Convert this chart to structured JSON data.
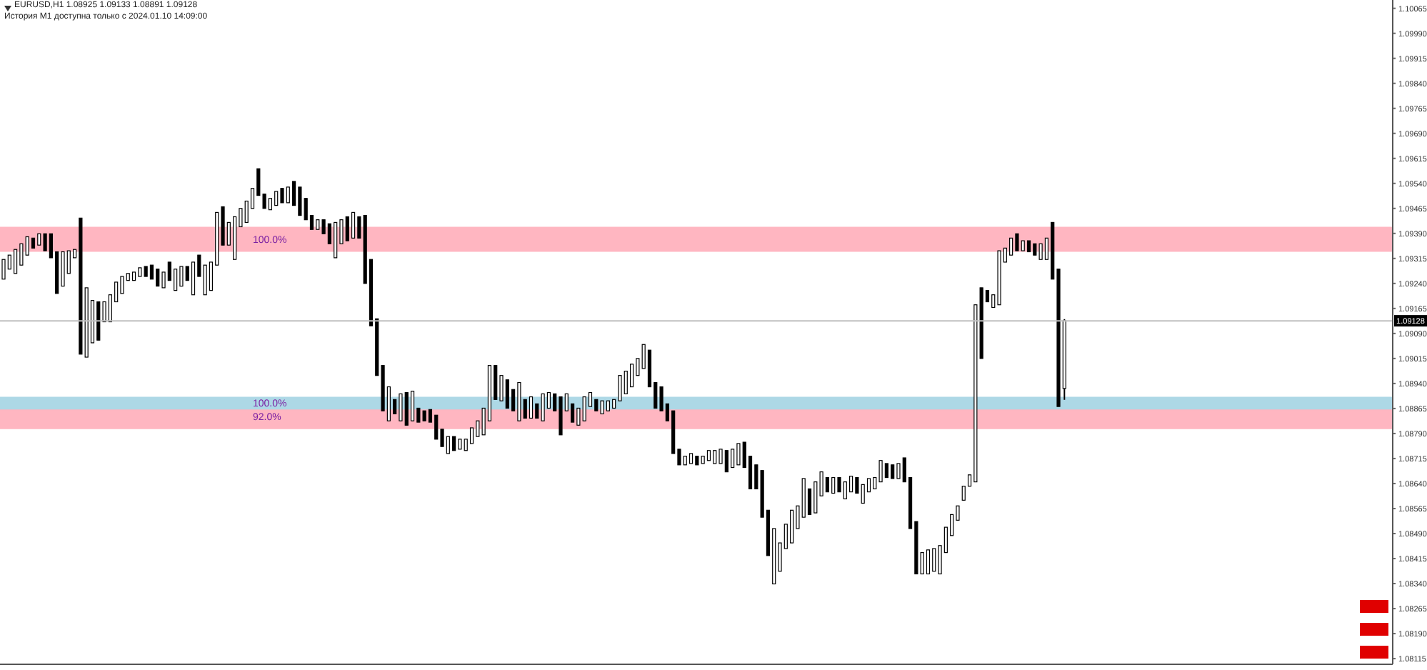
{
  "chart_data": {
    "type": "candlestick",
    "title": "EURUSD,H1  1.08925 1.09133 1.08891 1.09128",
    "subtitle": "История M1 доступна только с 2024.01.10 14:09:00",
    "categories": [
      null,
      null,
      null,
      null,
      null,
      null,
      null,
      null,
      null,
      null,
      null,
      null,
      null,
      null,
      null,
      null,
      null,
      null,
      null,
      null,
      null,
      null,
      null,
      null,
      null,
      null,
      null,
      null,
      null,
      null,
      null,
      null,
      null,
      null,
      null,
      null,
      null,
      null,
      null,
      null,
      null,
      null,
      null,
      null,
      null,
      null,
      null,
      null,
      null,
      null,
      null,
      null,
      null,
      null,
      null,
      null,
      null,
      null,
      null,
      null,
      null,
      null,
      null,
      null,
      null,
      null,
      null,
      null,
      null,
      null,
      null,
      null,
      null,
      null,
      null,
      null,
      null,
      null,
      null,
      null,
      null,
      null,
      null,
      null,
      null,
      null,
      null,
      null,
      null,
      null,
      null,
      null,
      null,
      null,
      null,
      null,
      null,
      null,
      null,
      null,
      null,
      null,
      null,
      null,
      null,
      null,
      null,
      null,
      null,
      null,
      null,
      null,
      null,
      null,
      null,
      null,
      null,
      null,
      null,
      null,
      null,
      null,
      null,
      null,
      null,
      null,
      null,
      null,
      null,
      null,
      null,
      null,
      null,
      null,
      null,
      null,
      null,
      null,
      null,
      null,
      null,
      null,
      null,
      null,
      null,
      null,
      null,
      null,
      null,
      null,
      null,
      null,
      null,
      null,
      null,
      null,
      null,
      null,
      null,
      null,
      null,
      null,
      null,
      null,
      null,
      null,
      null,
      null,
      null,
      null,
      null,
      null,
      null,
      null,
      null,
      null,
      null,
      null,
      null,
      null,
      null,
      null,
      null,
      null,
      null,
      null,
      null,
      null,
      null,
      null,
      null,
      null,
      null,
      null,
      null,
      null,
      null,
      null,
      null,
      null,
      null,
      null,
      null,
      null,
      null,
      null,
      null,
      null,
      null,
      null,
      null,
      null,
      null,
      null,
      null,
      null,
      null,
      null,
      null,
      null,
      null,
      null,
      null,
      null,
      null,
      null,
      null,
      null,
      null,
      null,
      null,
      null,
      null,
      null,
      null
    ],
    "ohlc": [
      [
        1.09253,
        1.09312,
        1.09253,
        1.09312
      ],
      [
        1.09283,
        1.09325,
        1.09283,
        1.09325
      ],
      [
        1.0927,
        1.09342,
        1.0927,
        1.09342
      ],
      [
        1.09295,
        1.09359,
        1.09295,
        1.09359
      ],
      [
        1.09325,
        1.0938,
        1.09325,
        1.0938
      ],
      [
        1.09376,
        1.09376,
        1.09346,
        1.09346
      ],
      [
        1.09355,
        1.09389,
        1.09355,
        1.09389
      ],
      [
        1.09389,
        1.09389,
        1.09338,
        1.09338
      ],
      [
        1.09389,
        1.09389,
        1.09317,
        1.09317
      ],
      [
        1.09335,
        1.09335,
        1.0921,
        1.0921
      ],
      [
        1.09232,
        1.09335,
        1.09232,
        1.09335
      ],
      [
        1.0927,
        1.09338,
        1.0927,
        1.09338
      ],
      [
        1.09317,
        1.09342,
        1.09317,
        1.09342
      ],
      [
        1.09436,
        1.09436,
        1.09028,
        1.09028
      ],
      [
        1.09019,
        1.09227,
        1.09019,
        1.09227
      ],
      [
        1.09062,
        1.09189,
        1.09062,
        1.09189
      ],
      [
        1.09185,
        1.09185,
        1.0907,
        1.0907
      ],
      [
        1.09125,
        1.09185,
        1.09125,
        1.09185
      ],
      [
        1.09125,
        1.09206,
        1.09125,
        1.09206
      ],
      [
        1.09185,
        1.09244,
        1.09185,
        1.09244
      ],
      [
        1.0921,
        1.09261,
        1.0921,
        1.09261
      ],
      [
        1.09249,
        1.0927,
        1.09249,
        1.0927
      ],
      [
        1.09249,
        1.09274,
        1.09249,
        1.09274
      ],
      [
        1.09261,
        1.09287,
        1.09261,
        1.09287
      ],
      [
        1.09291,
        1.09291,
        1.09261,
        1.09261
      ],
      [
        1.09295,
        1.09295,
        1.09253,
        1.09253
      ],
      [
        1.09283,
        1.09283,
        1.09232,
        1.09232
      ],
      [
        1.09227,
        1.09274,
        1.09227,
        1.09274
      ],
      [
        1.09304,
        1.09304,
        1.09249,
        1.09249
      ],
      [
        1.09219,
        1.09283,
        1.09219,
        1.09283
      ],
      [
        1.09232,
        1.09291,
        1.09232,
        1.09291
      ],
      [
        1.09291,
        1.09291,
        1.09249,
        1.09249
      ],
      [
        1.09206,
        1.09304,
        1.09206,
        1.09304
      ],
      [
        1.09325,
        1.09325,
        1.09261,
        1.09261
      ],
      [
        1.09206,
        1.09295,
        1.09206,
        1.09295
      ],
      [
        1.09219,
        1.09304,
        1.09219,
        1.09304
      ],
      [
        1.09295,
        1.09453,
        1.09295,
        1.09453
      ],
      [
        1.0947,
        1.0947,
        1.09355,
        1.09355
      ],
      [
        1.09355,
        1.09423,
        1.09355,
        1.09423
      ],
      [
        1.09312,
        1.0944,
        1.09312,
        1.0944
      ],
      [
        1.0941,
        1.09465,
        1.0941,
        1.09465
      ],
      [
        1.09423,
        1.09487,
        1.09423,
        1.09487
      ],
      [
        1.09465,
        1.09525,
        1.09465,
        1.09525
      ],
      [
        1.09584,
        1.09584,
        1.09504,
        1.09504
      ],
      [
        1.09508,
        1.09508,
        1.09465,
        1.09465
      ],
      [
        1.09461,
        1.09495,
        1.09461,
        1.09495
      ],
      [
        1.09474,
        1.09516,
        1.09474,
        1.09516
      ],
      [
        1.09525,
        1.09525,
        1.09482,
        1.09482
      ],
      [
        1.09482,
        1.09529,
        1.09482,
        1.09529
      ],
      [
        1.09546,
        1.09546,
        1.09474,
        1.09474
      ],
      [
        1.09529,
        1.09529,
        1.09444,
        1.09444
      ],
      [
        1.09495,
        1.09495,
        1.09431,
        1.09431
      ],
      [
        1.09444,
        1.09444,
        1.09402,
        1.09402
      ],
      [
        1.09402,
        1.09431,
        1.09402,
        1.09431
      ],
      [
        1.09431,
        1.09431,
        1.09389,
        1.09389
      ],
      [
        1.09419,
        1.09419,
        1.09359,
        1.09359
      ],
      [
        1.09317,
        1.09423,
        1.09317,
        1.09423
      ],
      [
        1.09359,
        1.09431,
        1.09359,
        1.09431
      ],
      [
        1.0944,
        1.0944,
        1.09368,
        1.09368
      ],
      [
        1.09376,
        1.09453,
        1.09376,
        1.09453
      ],
      [
        1.0944,
        1.0944,
        1.09376,
        1.09376
      ],
      [
        1.09444,
        1.09444,
        1.0924,
        1.0924
      ],
      [
        1.09312,
        1.09312,
        1.09113,
        1.09113
      ],
      [
        1.09134,
        1.09134,
        1.08964,
        1.08964
      ],
      [
        1.08994,
        1.08994,
        1.08858,
        1.08858
      ],
      [
        1.08828,
        1.0893,
        1.08828,
        1.0893
      ],
      [
        1.08892,
        1.08892,
        1.08849,
        1.08849
      ],
      [
        1.08828,
        1.08909,
        1.08828,
        1.08909
      ],
      [
        1.08913,
        1.08913,
        1.08815,
        1.08815
      ],
      [
        1.08828,
        1.08917,
        1.08828,
        1.08917
      ],
      [
        1.08866,
        1.08866,
        1.08824,
        1.08824
      ],
      [
        1.08858,
        1.08858,
        1.08828,
        1.08828
      ],
      [
        1.08862,
        1.08862,
        1.08824,
        1.08824
      ],
      [
        1.08845,
        1.08845,
        1.08773,
        1.08773
      ],
      [
        1.08803,
        1.08803,
        1.08751,
        1.08751
      ],
      [
        1.0873,
        1.08781,
        1.0873,
        1.08781
      ],
      [
        1.08781,
        1.08781,
        1.08739,
        1.08739
      ],
      [
        1.08743,
        1.08773,
        1.08743,
        1.08773
      ],
      [
        1.08739,
        1.08773,
        1.08739,
        1.08773
      ],
      [
        1.0876,
        1.08807,
        1.0876,
        1.08807
      ],
      [
        1.08781,
        1.08828,
        1.08781,
        1.08828
      ],
      [
        1.08786,
        1.08866,
        1.08786,
        1.08866
      ],
      [
        1.08828,
        1.08994,
        1.08828,
        1.08994
      ],
      [
        1.08994,
        1.08994,
        1.08892,
        1.08892
      ],
      [
        1.08888,
        1.08964,
        1.08888,
        1.08964
      ],
      [
        1.08951,
        1.08951,
        1.08866,
        1.08866
      ],
      [
        1.08922,
        1.08922,
        1.08858,
        1.08858
      ],
      [
        1.08828,
        1.08943,
        1.08828,
        1.08943
      ],
      [
        1.08892,
        1.08892,
        1.08836,
        1.08836
      ],
      [
        1.08836,
        1.089,
        1.08836,
        1.089
      ],
      [
        1.08879,
        1.08879,
        1.08836,
        1.08836
      ],
      [
        1.08828,
        1.08909,
        1.08828,
        1.08909
      ],
      [
        1.08866,
        1.08913,
        1.08866,
        1.08913
      ],
      [
        1.08909,
        1.08909,
        1.08858,
        1.08858
      ],
      [
        1.089,
        1.089,
        1.08786,
        1.08786
      ],
      [
        1.08858,
        1.08909,
        1.08858,
        1.08909
      ],
      [
        1.08879,
        1.08879,
        1.08824,
        1.08824
      ],
      [
        1.08815,
        1.08866,
        1.08815,
        1.08866
      ],
      [
        1.08828,
        1.089,
        1.08828,
        1.089
      ],
      [
        1.08871,
        1.08913,
        1.08871,
        1.08913
      ],
      [
        1.08892,
        1.08892,
        1.08858,
        1.08858
      ],
      [
        1.08849,
        1.08888,
        1.08849,
        1.08888
      ],
      [
        1.08858,
        1.08888,
        1.08858,
        1.08888
      ],
      [
        1.08866,
        1.08892,
        1.08866,
        1.08892
      ],
      [
        1.08888,
        1.08964,
        1.08888,
        1.08964
      ],
      [
        1.08909,
        1.08977,
        1.08909,
        1.08977
      ],
      [
        1.0893,
        1.08998,
        1.0893,
        1.08998
      ],
      [
        1.08964,
        1.09015,
        1.08964,
        1.09015
      ],
      [
        1.08985,
        1.09057,
        1.08985,
        1.09057
      ],
      [
        1.0904,
        1.0904,
        1.0893,
        1.0893
      ],
      [
        1.08943,
        1.08943,
        1.08866,
        1.08866
      ],
      [
        1.0893,
        1.0893,
        1.08858,
        1.08858
      ],
      [
        1.08879,
        1.08879,
        1.08828,
        1.08828
      ],
      [
        1.08858,
        1.08858,
        1.0873,
        1.0873
      ],
      [
        1.08743,
        1.08743,
        1.08696,
        1.08696
      ],
      [
        1.08696,
        1.08722,
        1.08696,
        1.08722
      ],
      [
        1.087,
        1.0873,
        1.087,
        1.0873
      ],
      [
        1.08722,
        1.08722,
        1.08696,
        1.08696
      ],
      [
        1.087,
        1.08722,
        1.087,
        1.08722
      ],
      [
        1.08709,
        1.08739,
        1.08709,
        1.08739
      ],
      [
        1.087,
        1.08739,
        1.087,
        1.08739
      ],
      [
        1.087,
        1.08743,
        1.087,
        1.08743
      ],
      [
        1.08739,
        1.08739,
        1.08675,
        1.08675
      ],
      [
        1.08688,
        1.08743,
        1.08688,
        1.08743
      ],
      [
        1.08696,
        1.0876,
        1.08696,
        1.0876
      ],
      [
        1.08764,
        1.08764,
        1.08688,
        1.08688
      ],
      [
        1.08722,
        1.08722,
        1.08624,
        1.08624
      ],
      [
        1.08696,
        1.08696,
        1.08624,
        1.08624
      ],
      [
        1.08679,
        1.08679,
        1.08539,
        1.08539
      ],
      [
        1.0856,
        1.0856,
        1.08424,
        1.08424
      ],
      [
        1.08339,
        1.08505,
        1.08339,
        1.08505
      ],
      [
        1.08377,
        1.08462,
        1.08377,
        1.08462
      ],
      [
        1.08445,
        1.08518,
        1.08445,
        1.08518
      ],
      [
        1.08462,
        1.0856,
        1.08462,
        1.0856
      ],
      [
        1.08505,
        1.08573,
        1.08505,
        1.08573
      ],
      [
        1.08539,
        1.08655,
        1.08539,
        1.08655
      ],
      [
        1.08624,
        1.08624,
        1.08547,
        1.08547
      ],
      [
        1.08552,
        1.08645,
        1.08552,
        1.08645
      ],
      [
        1.08603,
        1.08675,
        1.08603,
        1.08675
      ],
      [
        1.08658,
        1.08658,
        1.08615,
        1.08615
      ],
      [
        1.08611,
        1.08658,
        1.08611,
        1.08658
      ],
      [
        1.08658,
        1.08658,
        1.08615,
        1.08615
      ],
      [
        1.08594,
        1.08645,
        1.08594,
        1.08645
      ],
      [
        1.08615,
        1.08662,
        1.08615,
        1.08662
      ],
      [
        1.08658,
        1.08658,
        1.08611,
        1.08611
      ],
      [
        1.08581,
        1.08637,
        1.08581,
        1.08637
      ],
      [
        1.08615,
        1.08655,
        1.08615,
        1.08655
      ],
      [
        1.08624,
        1.08658,
        1.08624,
        1.08658
      ],
      [
        1.08645,
        1.08709,
        1.08645,
        1.08709
      ],
      [
        1.087,
        1.087,
        1.08658,
        1.08658
      ],
      [
        1.08696,
        1.08696,
        1.08655,
        1.08655
      ],
      [
        1.08655,
        1.087,
        1.08655,
        1.087
      ],
      [
        1.08717,
        1.08717,
        1.08645,
        1.08645
      ],
      [
        1.08658,
        1.08658,
        1.08505,
        1.08505
      ],
      [
        1.08526,
        1.08526,
        1.08369,
        1.08369
      ],
      [
        1.08369,
        1.08433,
        1.08369,
        1.08433
      ],
      [
        1.08369,
        1.08441,
        1.08369,
        1.08441
      ],
      [
        1.08377,
        1.08445,
        1.08377,
        1.08445
      ],
      [
        1.08369,
        1.08454,
        1.08369,
        1.08454
      ],
      [
        1.08433,
        1.08509,
        1.08433,
        1.08509
      ],
      [
        1.08484,
        1.08547,
        1.08484,
        1.08547
      ],
      [
        1.0853,
        1.08573,
        1.0853,
        1.08573
      ],
      [
        1.0859,
        1.08632,
        1.0859,
        1.08632
      ],
      [
        1.08632,
        1.08666,
        1.08632,
        1.08666
      ],
      [
        1.08645,
        1.09176,
        1.08645,
        1.09176
      ],
      [
        1.09227,
        1.09227,
        1.09015,
        1.09015
      ],
      [
        1.09219,
        1.09219,
        1.09185,
        1.09185
      ],
      [
        1.09168,
        1.09206,
        1.09168,
        1.09206
      ],
      [
        1.09176,
        1.09338,
        1.09176,
        1.09338
      ],
      [
        1.09304,
        1.09346,
        1.09304,
        1.09346
      ],
      [
        1.09325,
        1.09376,
        1.09325,
        1.09376
      ],
      [
        1.09389,
        1.09389,
        1.09338,
        1.09338
      ],
      [
        1.09338,
        1.09368,
        1.09338,
        1.09368
      ],
      [
        1.09368,
        1.09368,
        1.09335,
        1.09335
      ],
      [
        1.09359,
        1.09359,
        1.09325,
        1.09325
      ],
      [
        1.09312,
        1.09359,
        1.09312,
        1.09359
      ],
      [
        1.09312,
        1.09376,
        1.09312,
        1.09376
      ],
      [
        1.09423,
        1.09423,
        1.09253,
        1.09253
      ],
      [
        1.09283,
        1.09283,
        1.08871,
        1.08871
      ],
      [
        1.08925,
        1.09133,
        1.08891,
        1.09128
      ],
      null,
      null,
      null,
      null,
      null,
      null,
      null,
      null,
      null,
      null,
      null,
      null,
      null,
      null,
      null,
      null,
      null,
      null,
      null,
      null,
      null,
      null,
      null,
      null,
      null,
      null,
      null,
      null,
      null,
      null,
      null,
      null,
      null,
      null,
      null,
      null,
      null,
      null,
      null,
      null,
      null,
      null,
      null,
      null,
      null,
      null,
      null,
      null,
      null,
      null,
      null,
      null,
      null,
      null,
      null
    ],
    "ylim": [
      1.08098,
      1.1009
    ],
    "yticks": [
      1.10065,
      {
        "value": 1.0999,
        "label": "1.09990"
      },
      1.09915,
      {
        "value": 1.0984,
        "label": "1.09840"
      },
      1.09765,
      {
        "value": 1.0969,
        "label": "1.09690"
      },
      1.09615,
      {
        "value": 1.0954,
        "label": "1.09540"
      },
      1.09465,
      {
        "value": 1.0939,
        "label": "1.09390"
      },
      1.09315,
      {
        "value": 1.0924,
        "label": "1.09240"
      },
      1.09165,
      {
        "value": 1.0909,
        "label": "1.09090"
      },
      1.09015,
      {
        "value": 1.0894,
        "label": "1.08940"
      },
      1.08865,
      {
        "value": 1.0879,
        "label": "1.08790"
      },
      1.08715,
      {
        "value": 1.0864,
        "label": "1.08640"
      },
      1.08565,
      {
        "value": 1.0849,
        "label": "1.08490"
      },
      1.08415,
      {
        "value": 1.0834,
        "label": "1.08340"
      },
      1.08265,
      {
        "value": 1.0819,
        "label": "1.08190"
      },
      1.08115
    ],
    "tick_labels": "y",
    "color": "#000000",
    "ref_lines": [
      {
        "axis": "y",
        "value": 1.09128,
        "label": "1.09128",
        "color": "#c0c0c0"
      }
    ],
    "bands": [
      {
        "axis": "y",
        "from": 1.09335,
        "to": 1.0941,
        "label": "100.0%",
        "color": "#ffb6c1"
      },
      {
        "axis": "y",
        "from": 1.08803,
        "to": 1.08879,
        "label": "92.0%",
        "color": "#ffb6c1"
      },
      {
        "axis": "y",
        "from": 1.08862,
        "to": 1.089,
        "label": "100.0%",
        "color": "#add8e6"
      }
    ]
  }
}
